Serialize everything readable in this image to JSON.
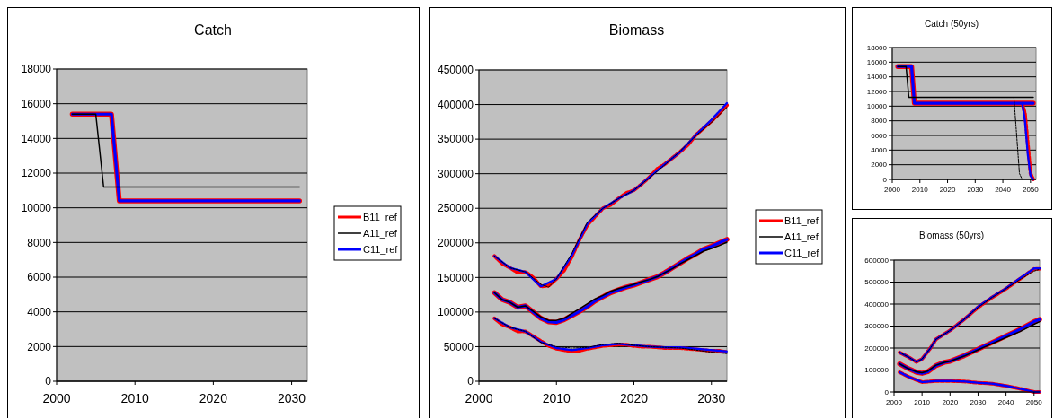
{
  "chart_data": [
    {
      "type": "line",
      "title": "Catch",
      "xlim": [
        2000,
        2032
      ],
      "xticks": [
        2000,
        2010,
        2020,
        2030
      ],
      "ylim": [
        0,
        18000
      ],
      "yticks": [
        0,
        2000,
        4000,
        6000,
        8000,
        10000,
        12000,
        14000,
        16000,
        18000
      ],
      "grid": "y",
      "legend": "right",
      "marker": "none",
      "series": [
        {
          "name": "B11_ref",
          "color": "#ff0000",
          "x": [
            2002,
            2007,
            2008,
            2031
          ],
          "values": [
            15400,
            15400,
            10400,
            10400
          ]
        },
        {
          "name": "A11_ref",
          "color": "#000000",
          "x": [
            2002,
            2005,
            2006,
            2031
          ],
          "values": [
            15400,
            15400,
            11200,
            11200
          ]
        },
        {
          "name": "C11_ref",
          "color": "#0000ff",
          "x": [
            2002,
            2007,
            2008,
            2031
          ],
          "values": [
            15400,
            15400,
            10400,
            10400
          ]
        }
      ]
    },
    {
      "type": "line",
      "title": "Biomass",
      "xlim": [
        2000,
        2032
      ],
      "xticks": [
        2000,
        2010,
        2020,
        2030
      ],
      "ylim": [
        0,
        450000
      ],
      "yticks": [
        0,
        50000,
        100000,
        150000,
        200000,
        250000,
        300000,
        350000,
        400000,
        450000
      ],
      "grid": "y",
      "legend": "right",
      "marker": "none",
      "series": [
        {
          "name": "B11_ref",
          "color": "#ff0000",
          "x": [
            2002,
            2003,
            2004,
            2005,
            2006,
            2007,
            2008,
            2009,
            2010,
            2011,
            2012,
            2013,
            2014,
            2015,
            2016,
            2017,
            2018,
            2019,
            2020,
            2021,
            2022,
            2023,
            2024,
            2025,
            2026,
            2027,
            2028,
            2029,
            2030,
            2031,
            2032
          ],
          "values": [
            128000,
            118000,
            114000,
            107000,
            109000,
            100000,
            91000,
            86000,
            85000,
            89000,
            95000,
            101000,
            108000,
            116000,
            122000,
            128000,
            132000,
            136000,
            139000,
            143000,
            147000,
            151000,
            157000,
            164000,
            171000,
            178000,
            184000,
            191000,
            195000,
            200000,
            205000
          ]
        },
        {
          "name": "A11_ref",
          "color": "#000000",
          "x": [
            2002,
            2003,
            2004,
            2005,
            2006,
            2007,
            2008,
            2009,
            2010,
            2011,
            2012,
            2013,
            2014,
            2015,
            2016,
            2017,
            2018,
            2019,
            2020,
            2021,
            2022,
            2023,
            2024,
            2025,
            2026,
            2027,
            2028,
            2029,
            2030,
            2031,
            2032
          ],
          "values": [
            128000,
            118000,
            114000,
            107000,
            109000,
            101000,
            93000,
            88000,
            88000,
            91000,
            98000,
            105000,
            112000,
            119000,
            124000,
            130000,
            134000,
            137000,
            140000,
            144000,
            147000,
            151000,
            157000,
            163000,
            170000,
            176000,
            182000,
            188000,
            192000,
            196000,
            201000
          ]
        },
        {
          "name": "C11_ref",
          "color": "#0000ff",
          "x": [
            2002,
            2003,
            2004,
            2005,
            2006,
            2007,
            2008,
            2009,
            2010,
            2011,
            2012,
            2013,
            2014,
            2015,
            2016,
            2017,
            2018,
            2019,
            2020,
            2021,
            2022,
            2023,
            2024,
            2025,
            2026,
            2027,
            2028,
            2029,
            2030,
            2031,
            2032
          ],
          "values": [
            128000,
            118000,
            114000,
            107000,
            109000,
            100000,
            91000,
            86000,
            85000,
            89000,
            95000,
            101000,
            108000,
            116000,
            122000,
            128000,
            132000,
            136000,
            139000,
            143000,
            147000,
            151000,
            157000,
            164000,
            171000,
            178000,
            184000,
            191000,
            195000,
            200000,
            205000
          ]
        },
        {
          "color": "#ff0000",
          "line_style": "dashed",
          "x": [
            2002,
            2003,
            2004,
            2005,
            2006,
            2007,
            2008,
            2009,
            2010,
            2011,
            2012,
            2013,
            2014,
            2015,
            2016,
            2017,
            2018,
            2019,
            2020,
            2021,
            2022,
            2023,
            2024,
            2025,
            2026,
            2027,
            2028,
            2029,
            2030,
            2031,
            2032
          ],
          "values": [
            181000,
            170000,
            164000,
            157000,
            158000,
            150000,
            137000,
            138000,
            148000,
            160000,
            180000,
            205000,
            226000,
            238000,
            250000,
            255000,
            264000,
            272000,
            276000,
            285000,
            295000,
            307000,
            314000,
            323000,
            332000,
            342000,
            356000,
            366000,
            376000,
            387000,
            399000
          ]
        },
        {
          "color": "#0000ff",
          "line_style": "dotted",
          "x": [
            2002,
            2004,
            2006,
            2008,
            2010,
            2012,
            2014,
            2016,
            2018,
            2020,
            2022,
            2024,
            2026,
            2028,
            2030,
            2032
          ],
          "values": [
            181000,
            164000,
            158000,
            137000,
            148000,
            182000,
            228000,
            250000,
            264000,
            276000,
            295000,
            314000,
            332000,
            356000,
            378000,
            402000
          ]
        },
        {
          "color": "#000000",
          "line_style": "dotted",
          "x": [
            2002,
            2004,
            2006,
            2008,
            2009,
            2010,
            2012,
            2014,
            2016,
            2018,
            2020,
            2022,
            2024,
            2026,
            2028,
            2030,
            2032
          ],
          "values": [
            181000,
            164000,
            158000,
            140000,
            136000,
            148000,
            185000,
            230000,
            250000,
            264000,
            276000,
            294000,
            313000,
            333000,
            355000,
            374000,
            396000
          ]
        },
        {
          "color": "#ff0000",
          "line_style": "dashed",
          "x": [
            2002,
            2003,
            2004,
            2005,
            2006,
            2007,
            2008,
            2009,
            2010,
            2011,
            2012,
            2013,
            2014,
            2015,
            2016,
            2017,
            2018,
            2019,
            2020,
            2021,
            2022,
            2023,
            2024,
            2025,
            2026,
            2027,
            2028,
            2029,
            2030,
            2031,
            2032
          ],
          "values": [
            91000,
            82000,
            78000,
            72000,
            72000,
            65000,
            58000,
            51000,
            47000,
            45000,
            43000,
            44000,
            47000,
            49000,
            51000,
            52000,
            53000,
            53000,
            51000,
            50000,
            50000,
            49000,
            48000,
            48000,
            48000,
            47000,
            46000,
            45000,
            44000,
            44000,
            42000
          ]
        },
        {
          "color": "#0000ff",
          "line_style": "dotted",
          "x": [
            2002,
            2004,
            2006,
            2008,
            2010,
            2012,
            2014,
            2016,
            2018,
            2020,
            2022,
            2024,
            2026,
            2028,
            2030,
            2032
          ],
          "values": [
            91000,
            78000,
            72000,
            57000,
            48000,
            45000,
            48000,
            52000,
            54000,
            52000,
            50000,
            49000,
            49000,
            47000,
            45000,
            43000
          ]
        },
        {
          "color": "#000000",
          "line_style": "dotted",
          "x": [
            2002,
            2004,
            2006,
            2008,
            2010,
            2012,
            2014,
            2016,
            2018,
            2020,
            2022,
            2024,
            2026,
            2028,
            2030,
            2032
          ],
          "values": [
            91000,
            78000,
            72000,
            56000,
            50000,
            48000,
            49000,
            53000,
            55000,
            52000,
            50000,
            49000,
            48000,
            45000,
            42000,
            40000
          ]
        }
      ]
    },
    {
      "type": "line",
      "title": "Catch (50yrs)",
      "xlim": [
        2000,
        2052
      ],
      "xticks": [
        2000,
        2010,
        2020,
        2030,
        2040,
        2050
      ],
      "ylim": [
        0,
        18000
      ],
      "yticks": [
        0,
        2000,
        4000,
        6000,
        8000,
        10000,
        12000,
        14000,
        16000,
        18000
      ],
      "grid": "y",
      "legend": false,
      "marker": "none",
      "series": [
        {
          "color": "#ff0000",
          "x": [
            2002,
            2007,
            2008,
            2051
          ],
          "values": [
            15400,
            15400,
            10400,
            10400
          ]
        },
        {
          "color": "#000000",
          "x": [
            2002,
            2005,
            2006,
            2051
          ],
          "values": [
            15400,
            15400,
            11200,
            11200
          ]
        },
        {
          "color": "#0000ff",
          "x": [
            2002,
            2007,
            2008,
            2051
          ],
          "values": [
            15400,
            15400,
            10400,
            10400
          ]
        },
        {
          "color": "#ff0000",
          "line_style": "dashed",
          "x": [
            2047,
            2048,
            2049,
            2050,
            2051
          ],
          "values": [
            10400,
            9000,
            5000,
            800,
            0
          ]
        },
        {
          "color": "#0000ff",
          "line_style": "dotted",
          "x": [
            2047,
            2048,
            2049,
            2050,
            2051
          ],
          "values": [
            10400,
            8000,
            3500,
            500,
            0
          ]
        },
        {
          "color": "#000000",
          "line_style": "dotted",
          "x": [
            2006,
            2044,
            2045,
            2046,
            2047
          ],
          "values": [
            11200,
            11200,
            6000,
            800,
            0
          ]
        }
      ]
    },
    {
      "type": "line",
      "title": "Biomass (50yrs)",
      "xlim": [
        2000,
        2052
      ],
      "xticks": [
        2000,
        2010,
        2020,
        2030,
        2040,
        2050
      ],
      "ylim": [
        0,
        600000
      ],
      "yticks": [
        0,
        100000,
        200000,
        300000,
        400000,
        500000,
        600000
      ],
      "grid": "y",
      "legend": false,
      "marker": "none",
      "series": [
        {
          "color": "#ff0000",
          "x": [
            2002,
            2005,
            2008,
            2010,
            2012,
            2015,
            2018,
            2020,
            2025,
            2030,
            2035,
            2040,
            2045,
            2050,
            2052
          ],
          "values": [
            128000,
            107000,
            90000,
            85000,
            92000,
            120000,
            135000,
            140000,
            165000,
            195000,
            225000,
            255000,
            285000,
            320000,
            330000
          ]
        },
        {
          "color": "#000000",
          "x": [
            2002,
            2005,
            2008,
            2010,
            2012,
            2015,
            2018,
            2020,
            2025,
            2030,
            2035,
            2040,
            2045,
            2050,
            2052
          ],
          "values": [
            128000,
            107000,
            92000,
            88000,
            95000,
            122000,
            135000,
            140000,
            163000,
            192000,
            220000,
            248000,
            275000,
            308000,
            320000
          ]
        },
        {
          "color": "#0000ff",
          "x": [
            2002,
            2005,
            2008,
            2010,
            2012,
            2015,
            2018,
            2020,
            2025,
            2030,
            2035,
            2040,
            2045,
            2050,
            2052
          ],
          "values": [
            128000,
            107000,
            90000,
            85000,
            92000,
            120000,
            135000,
            140000,
            165000,
            195000,
            225000,
            255000,
            285000,
            320000,
            330000
          ]
        },
        {
          "color": "#ff0000",
          "line_style": "dashed",
          "x": [
            2002,
            2005,
            2008,
            2010,
            2013,
            2015,
            2020,
            2025,
            2030,
            2035,
            2040,
            2045,
            2050,
            2052
          ],
          "values": [
            180000,
            160000,
            137000,
            150000,
            200000,
            240000,
            280000,
            330000,
            385000,
            430000,
            470000,
            515000,
            560000,
            560000
          ]
        },
        {
          "color": "#0000ff",
          "line_style": "dotted",
          "x": [
            2002,
            2005,
            2008,
            2010,
            2013,
            2015,
            2020,
            2025,
            2030,
            2035,
            2040,
            2045,
            2050,
            2052
          ],
          "values": [
            180000,
            160000,
            137000,
            150000,
            200000,
            240000,
            280000,
            330000,
            388000,
            432000,
            472000,
            518000,
            562000,
            562000
          ]
        },
        {
          "color": "#000000",
          "line_style": "dotted",
          "x": [
            2002,
            2005,
            2008,
            2010,
            2013,
            2015,
            2020,
            2025,
            2030,
            2035,
            2040,
            2045,
            2050,
            2052
          ],
          "values": [
            180000,
            160000,
            137000,
            150000,
            200000,
            240000,
            280000,
            330000,
            385000,
            430000,
            470000,
            512000,
            550000,
            558000
          ]
        },
        {
          "color": "#ff0000",
          "line_style": "dashed",
          "x": [
            2002,
            2005,
            2008,
            2010,
            2015,
            2020,
            2025,
            2030,
            2035,
            2040,
            2045,
            2050,
            2052
          ],
          "values": [
            90000,
            70000,
            55000,
            45000,
            50000,
            50000,
            48000,
            42000,
            38000,
            28000,
            15000,
            0,
            0
          ]
        },
        {
          "color": "#0000ff",
          "line_style": "dotted",
          "x": [
            2002,
            2005,
            2008,
            2010,
            2015,
            2020,
            2025,
            2030,
            2035,
            2040,
            2045,
            2050,
            2052
          ],
          "values": [
            90000,
            70000,
            55000,
            45000,
            50000,
            50000,
            48000,
            42000,
            38000,
            28000,
            15000,
            0,
            0
          ]
        }
      ]
    }
  ]
}
